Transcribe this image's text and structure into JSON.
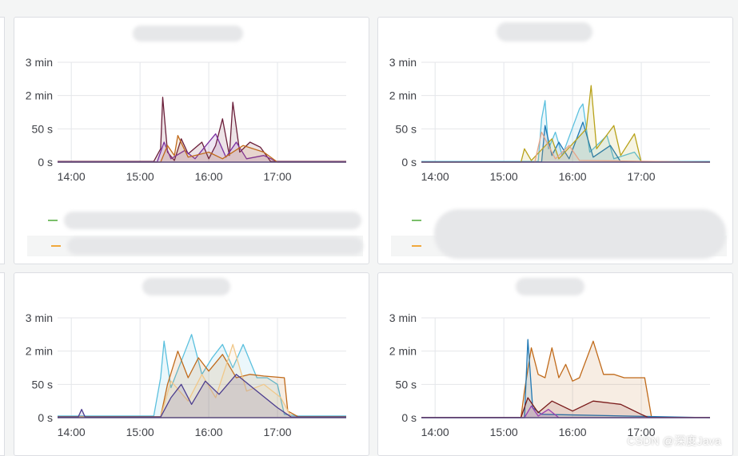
{
  "charts": [
    {
      "type": "line",
      "title": "",
      "x": [
        "14:00",
        "15:00",
        "16:00",
        "17:00"
      ],
      "x_range": [
        13.8,
        18.0
      ],
      "y_ticks": [
        "0 s",
        "50 s",
        "2 min",
        "3 min"
      ],
      "y_range": [
        0,
        3
      ],
      "series": [
        {
          "name": "",
          "color": "#6b1f3a",
          "values": [
            [
              13.8,
              0.02
            ],
            [
              15.2,
              0.02
            ],
            [
              15.3,
              0.4
            ],
            [
              15.33,
              1.95
            ],
            [
              15.4,
              0.3
            ],
            [
              15.5,
              0.05
            ],
            [
              15.6,
              0.7
            ],
            [
              15.7,
              0.25
            ],
            [
              15.9,
              0.6
            ],
            [
              16.0,
              0.1
            ],
            [
              16.1,
              0.5
            ],
            [
              16.2,
              1.3
            ],
            [
              16.3,
              0.2
            ],
            [
              16.35,
              1.8
            ],
            [
              16.45,
              0.3
            ],
            [
              16.6,
              0.6
            ],
            [
              16.75,
              0.45
            ],
            [
              16.9,
              0.02
            ],
            [
              18.0,
              0.02
            ]
          ]
        },
        {
          "name": "",
          "color": "#7b2fa0",
          "values": [
            [
              13.8,
              0.01
            ],
            [
              15.25,
              0.01
            ],
            [
              15.35,
              0.6
            ],
            [
              15.45,
              0.1
            ],
            [
              15.65,
              0.35
            ],
            [
              15.8,
              0.1
            ],
            [
              16.1,
              0.85
            ],
            [
              16.25,
              0.15
            ],
            [
              16.4,
              0.6
            ],
            [
              16.55,
              0.1
            ],
            [
              16.8,
              0.2
            ],
            [
              17.0,
              0.01
            ],
            [
              18.0,
              0.01
            ]
          ]
        },
        {
          "name": "",
          "color": "#c06a1a",
          "values": [
            [
              13.8,
              0.0
            ],
            [
              15.3,
              0.0
            ],
            [
              15.4,
              0.5
            ],
            [
              15.5,
              0.2
            ],
            [
              15.55,
              0.8
            ],
            [
              15.7,
              0.15
            ],
            [
              16.0,
              0.3
            ],
            [
              16.2,
              0.1
            ],
            [
              16.5,
              0.5
            ],
            [
              16.8,
              0.3
            ],
            [
              17.0,
              0.0
            ],
            [
              18.0,
              0.0
            ]
          ]
        }
      ],
      "legend": [
        "",
        ""
      ]
    },
    {
      "type": "line",
      "title": "",
      "x": [
        "14:00",
        "15:00",
        "16:00",
        "17:00"
      ],
      "x_range": [
        13.8,
        18.0
      ],
      "y_ticks": [
        "0 s",
        "50 s",
        "2 min",
        "3 min"
      ],
      "y_range": [
        0,
        3
      ],
      "series": [
        {
          "name": "",
          "color": "#5bc0de",
          "values": [
            [
              13.8,
              0.02
            ],
            [
              15.5,
              0.02
            ],
            [
              15.55,
              1.3
            ],
            [
              15.6,
              1.85
            ],
            [
              15.65,
              0.4
            ],
            [
              15.75,
              0.9
            ],
            [
              15.85,
              0.2
            ],
            [
              16.1,
              1.6
            ],
            [
              16.15,
              1.75
            ],
            [
              16.25,
              0.3
            ],
            [
              16.5,
              0.8
            ],
            [
              16.6,
              0.1
            ],
            [
              16.9,
              0.3
            ],
            [
              17.0,
              0.02
            ],
            [
              18.0,
              0.02
            ]
          ]
        },
        {
          "name": "",
          "color": "#1f78b4",
          "values": [
            [
              13.8,
              0.01
            ],
            [
              15.55,
              0.01
            ],
            [
              15.6,
              1.1
            ],
            [
              15.7,
              0.2
            ],
            [
              15.8,
              0.6
            ],
            [
              15.95,
              0.1
            ],
            [
              16.15,
              1.2
            ],
            [
              16.3,
              0.15
            ],
            [
              16.55,
              0.5
            ],
            [
              16.7,
              0.01
            ],
            [
              18.0,
              0.01
            ]
          ]
        },
        {
          "name": "",
          "color": "#b8a21a",
          "values": [
            [
              13.8,
              0.0
            ],
            [
              15.25,
              0.0
            ],
            [
              15.3,
              0.4
            ],
            [
              15.4,
              0.05
            ],
            [
              15.7,
              0.7
            ],
            [
              15.8,
              0.1
            ],
            [
              16.2,
              1.0
            ],
            [
              16.27,
              2.3
            ],
            [
              16.35,
              0.4
            ],
            [
              16.6,
              1.1
            ],
            [
              16.7,
              0.2
            ],
            [
              16.9,
              0.85
            ],
            [
              17.0,
              0.0
            ],
            [
              18.0,
              0.0
            ]
          ]
        },
        {
          "name": "",
          "color": "#e8a58a",
          "values": [
            [
              13.8,
              0.0
            ],
            [
              15.45,
              0.0
            ],
            [
              15.55,
              0.9
            ],
            [
              15.65,
              0.5
            ],
            [
              15.75,
              0.1
            ],
            [
              15.95,
              0.5
            ],
            [
              16.1,
              0.05
            ],
            [
              18.0,
              0.0
            ]
          ]
        }
      ],
      "legend": [
        "",
        ""
      ]
    },
    {
      "type": "line",
      "title": "",
      "x": [
        "14:00",
        "15:00",
        "16:00",
        "17:00"
      ],
      "x_range": [
        13.8,
        18.0
      ],
      "y_ticks": [
        "0 s",
        "50 s",
        "2 min",
        "3 min"
      ],
      "y_range": [
        0,
        3
      ],
      "series": [
        {
          "name": "",
          "color": "#5bc0de",
          "values": [
            [
              13.8,
              0.05
            ],
            [
              15.2,
              0.05
            ],
            [
              15.3,
              1.2
            ],
            [
              15.35,
              2.3
            ],
            [
              15.45,
              0.9
            ],
            [
              15.6,
              1.7
            ],
            [
              15.75,
              2.5
            ],
            [
              15.9,
              1.3
            ],
            [
              16.05,
              1.8
            ],
            [
              16.2,
              2.2
            ],
            [
              16.35,
              1.5
            ],
            [
              16.5,
              2.2
            ],
            [
              16.7,
              1.2
            ],
            [
              16.85,
              1.2
            ],
            [
              17.0,
              1.0
            ],
            [
              17.1,
              0.1
            ],
            [
              17.3,
              0.05
            ],
            [
              18.0,
              0.05
            ]
          ]
        },
        {
          "name": "",
          "color": "#c06a1a",
          "values": [
            [
              13.8,
              0.03
            ],
            [
              15.3,
              0.03
            ],
            [
              15.4,
              1.0
            ],
            [
              15.55,
              2.0
            ],
            [
              15.7,
              1.2
            ],
            [
              15.85,
              1.8
            ],
            [
              16.0,
              1.4
            ],
            [
              16.2,
              1.9
            ],
            [
              16.4,
              1.2
            ],
            [
              16.6,
              1.3
            ],
            [
              16.8,
              1.25
            ],
            [
              17.1,
              1.2
            ],
            [
              17.15,
              0.2
            ],
            [
              17.3,
              0.03
            ],
            [
              18.0,
              0.03
            ]
          ]
        },
        {
          "name": "",
          "color": "#f0c88a",
          "values": [
            [
              13.8,
              0.02
            ],
            [
              15.3,
              0.02
            ],
            [
              15.45,
              1.1
            ],
            [
              15.7,
              0.5
            ],
            [
              15.9,
              1.3
            ],
            [
              16.1,
              0.6
            ],
            [
              16.35,
              2.2
            ],
            [
              16.55,
              0.8
            ],
            [
              16.8,
              1.0
            ],
            [
              17.05,
              0.6
            ],
            [
              17.2,
              0.02
            ],
            [
              18.0,
              0.02
            ]
          ]
        },
        {
          "name": "",
          "color": "#4c3d8f",
          "values": [
            [
              13.8,
              0.02
            ],
            [
              14.1,
              0.02
            ],
            [
              14.15,
              0.25
            ],
            [
              14.2,
              0.02
            ],
            [
              15.3,
              0.02
            ],
            [
              15.45,
              0.6
            ],
            [
              15.6,
              1.0
            ],
            [
              15.75,
              0.4
            ],
            [
              15.95,
              1.1
            ],
            [
              16.15,
              0.7
            ],
            [
              16.4,
              1.3
            ],
            [
              16.7,
              0.8
            ],
            [
              17.0,
              0.3
            ],
            [
              17.2,
              0.02
            ],
            [
              18.0,
              0.02
            ]
          ]
        }
      ],
      "legend": []
    },
    {
      "type": "line",
      "title": "",
      "x": [
        "14:00",
        "15:00",
        "16:00",
        "17:00"
      ],
      "x_range": [
        13.8,
        18.0
      ],
      "y_ticks": [
        "0 s",
        "50 s",
        "2 min",
        "3 min"
      ],
      "y_range": [
        0,
        3
      ],
      "series": [
        {
          "name": "",
          "color": "#c06a1a",
          "values": [
            [
              13.8,
              0.01
            ],
            [
              15.25,
              0.01
            ],
            [
              15.3,
              0.8
            ],
            [
              15.4,
              2.1
            ],
            [
              15.5,
              1.3
            ],
            [
              15.6,
              1.2
            ],
            [
              15.7,
              2.1
            ],
            [
              15.8,
              1.2
            ],
            [
              15.9,
              1.6
            ],
            [
              16.0,
              1.1
            ],
            [
              16.1,
              1.2
            ],
            [
              16.3,
              2.3
            ],
            [
              16.45,
              1.3
            ],
            [
              16.6,
              1.3
            ],
            [
              16.75,
              1.2
            ],
            [
              16.9,
              1.2
            ],
            [
              17.05,
              1.2
            ],
            [
              17.15,
              0.01
            ],
            [
              18.0,
              0.01
            ]
          ]
        },
        {
          "name": "",
          "color": "#1f78b4",
          "values": [
            [
              13.8,
              0.0
            ],
            [
              15.3,
              0.0
            ],
            [
              15.35,
              2.35
            ],
            [
              15.42,
              0.3
            ],
            [
              15.55,
              0.1
            ],
            [
              18.0,
              0.0
            ]
          ]
        },
        {
          "name": "",
          "color": "#7a1a1a",
          "values": [
            [
              13.8,
              0.01
            ],
            [
              15.25,
              0.01
            ],
            [
              15.35,
              0.6
            ],
            [
              15.5,
              0.15
            ],
            [
              15.7,
              0.5
            ],
            [
              16.0,
              0.2
            ],
            [
              16.3,
              0.5
            ],
            [
              16.7,
              0.4
            ],
            [
              17.0,
              0.1
            ],
            [
              17.1,
              0.01
            ],
            [
              18.0,
              0.01
            ]
          ]
        },
        {
          "name": "",
          "color": "#9b3fb0",
          "values": [
            [
              13.8,
              0.0
            ],
            [
              15.3,
              0.0
            ],
            [
              15.4,
              0.35
            ],
            [
              15.5,
              0.05
            ],
            [
              15.65,
              0.25
            ],
            [
              15.8,
              0.0
            ],
            [
              18.0,
              0.0
            ]
          ]
        }
      ],
      "legend": []
    }
  ],
  "legend_colors": [
    "#7bbf6a",
    "#f0a83c"
  ],
  "watermark": "CSDN @深度Java"
}
